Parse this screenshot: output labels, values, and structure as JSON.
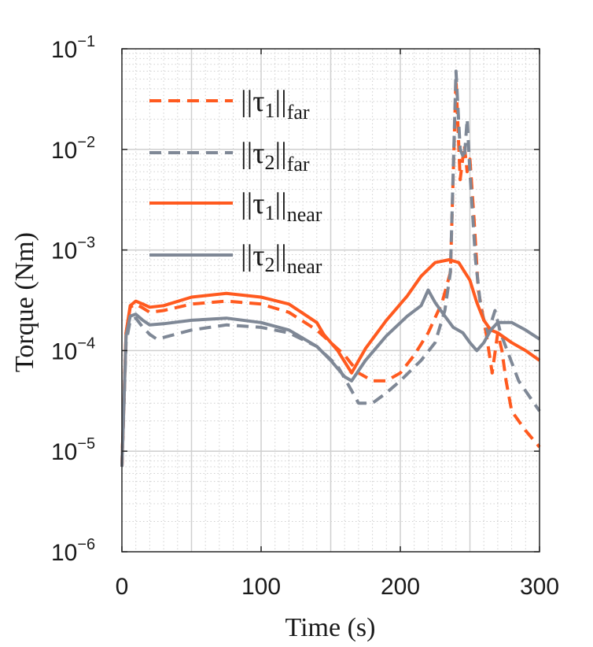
{
  "chart_data": {
    "type": "line",
    "title": "",
    "xlabel": "Time (s)",
    "ylabel": "Torque (Nm)",
    "xlim": [
      0,
      300
    ],
    "ylim_log10": [
      -6,
      -1
    ],
    "yscale": "log",
    "grid": true,
    "minor_grid": true,
    "legend_position": "top-left",
    "x_ticks": [
      {
        "value": 0,
        "label": "0"
      },
      {
        "value": 100,
        "label": "100"
      },
      {
        "value": 200,
        "label": "200"
      },
      {
        "value": 300,
        "label": "300"
      }
    ],
    "y_ticks": [
      {
        "exponent": -6,
        "base": "10",
        "sup": "−6"
      },
      {
        "exponent": -5,
        "base": "10",
        "sup": "−5"
      },
      {
        "exponent": -4,
        "base": "10",
        "sup": "−4"
      },
      {
        "exponent": -3,
        "base": "10",
        "sup": "−3"
      },
      {
        "exponent": -2,
        "base": "10",
        "sup": "−2"
      },
      {
        "exponent": -1,
        "base": "10",
        "sup": "−1"
      }
    ],
    "series": [
      {
        "key": "tau1_far",
        "legend": {
          "pre": "||τ",
          "idx": "1",
          "mid": "||",
          "sub": "far"
        },
        "color": "#FF5A1F",
        "style": "dashed",
        "points": [
          [
            0,
            7e-06
          ],
          [
            3,
            0.00015
          ],
          [
            6,
            0.00027
          ],
          [
            10,
            0.00029
          ],
          [
            15,
            0.000265
          ],
          [
            20,
            0.00024
          ],
          [
            30,
            0.00025
          ],
          [
            50,
            0.00029
          ],
          [
            75,
            0.00031
          ],
          [
            100,
            0.00029
          ],
          [
            120,
            0.00024
          ],
          [
            140,
            0.00016
          ],
          [
            150,
            0.00012
          ],
          [
            160,
            9e-05
          ],
          [
            170,
            6e-05
          ],
          [
            180,
            5e-05
          ],
          [
            190,
            5e-05
          ],
          [
            200,
            6e-05
          ],
          [
            210,
            9e-05
          ],
          [
            220,
            0.00015
          ],
          [
            230,
            0.0003
          ],
          [
            236,
            0.0006
          ],
          [
            240,
            0.05
          ],
          [
            243,
            0.005
          ],
          [
            246,
            0.011
          ],
          [
            248,
            0.006
          ],
          [
            250,
            0.008
          ],
          [
            253,
            0.002
          ],
          [
            256,
            0.0004
          ],
          [
            262,
            0.00014
          ],
          [
            266,
            6e-05
          ],
          [
            270,
            0.00015
          ],
          [
            273,
            0.0001
          ],
          [
            276,
            5e-05
          ],
          [
            280,
            2.5e-05
          ],
          [
            290,
            1.6e-05
          ],
          [
            300,
            1.1e-05
          ]
        ]
      },
      {
        "key": "tau2_far",
        "legend": {
          "pre": "||τ",
          "idx": "2",
          "mid": "||",
          "sub": "far"
        },
        "color": "#7F8896",
        "style": "dashed",
        "points": [
          [
            0,
            7e-06
          ],
          [
            3,
            0.00012
          ],
          [
            6,
            0.0002
          ],
          [
            10,
            0.00021
          ],
          [
            15,
            0.00017
          ],
          [
            20,
            0.000145
          ],
          [
            25,
            0.00013
          ],
          [
            30,
            0.000135
          ],
          [
            50,
            0.00016
          ],
          [
            75,
            0.00018
          ],
          [
            100,
            0.00017
          ],
          [
            120,
            0.00015
          ],
          [
            140,
            0.00011
          ],
          [
            155,
            7e-05
          ],
          [
            165,
            4e-05
          ],
          [
            170,
            3e-05
          ],
          [
            180,
            3e-05
          ],
          [
            190,
            3.8e-05
          ],
          [
            200,
            5e-05
          ],
          [
            215,
            8e-05
          ],
          [
            225,
            0.00012
          ],
          [
            232,
            0.00025
          ],
          [
            236,
            0.0006
          ],
          [
            240,
            0.06
          ],
          [
            243,
            0.01
          ],
          [
            246,
            0.008
          ],
          [
            248,
            0.02
          ],
          [
            250,
            0.006
          ],
          [
            254,
            0.0008
          ],
          [
            258,
            0.00025
          ],
          [
            263,
            0.00015
          ],
          [
            268,
            0.00025
          ],
          [
            272,
            0.00015
          ],
          [
            278,
            9e-05
          ],
          [
            285,
            5e-05
          ],
          [
            300,
            2.5e-05
          ]
        ]
      },
      {
        "key": "tau1_near",
        "legend": {
          "pre": "||τ",
          "idx": "1",
          "mid": "||",
          "sub": "near"
        },
        "color": "#FF5A1F",
        "style": "solid",
        "points": [
          [
            0,
            7e-06
          ],
          [
            3,
            0.00015
          ],
          [
            6,
            0.00028
          ],
          [
            10,
            0.00031
          ],
          [
            15,
            0.00029
          ],
          [
            20,
            0.00027
          ],
          [
            30,
            0.00028
          ],
          [
            50,
            0.00034
          ],
          [
            75,
            0.00037
          ],
          [
            100,
            0.00034
          ],
          [
            120,
            0.00029
          ],
          [
            140,
            0.00019
          ],
          [
            145,
            0.000145
          ],
          [
            155,
            0.0001
          ],
          [
            165,
            6e-05
          ],
          [
            175,
            0.000105
          ],
          [
            190,
            0.0002
          ],
          [
            205,
            0.00035
          ],
          [
            215,
            0.00055
          ],
          [
            225,
            0.00075
          ],
          [
            235,
            0.0008
          ],
          [
            242,
            0.00075
          ],
          [
            250,
            0.0005
          ],
          [
            255,
            0.0003
          ],
          [
            260,
            0.0002
          ],
          [
            265,
            0.00016
          ],
          [
            270,
            0.00015
          ],
          [
            280,
            0.00012
          ],
          [
            290,
            0.0001
          ],
          [
            300,
            8e-05
          ]
        ]
      },
      {
        "key": "tau2_near",
        "legend": {
          "pre": "||τ",
          "idx": "2",
          "mid": "||",
          "sub": "near"
        },
        "color": "#7F8896",
        "style": "solid",
        "points": [
          [
            0,
            7e-06
          ],
          [
            3,
            0.00014
          ],
          [
            6,
            0.00022
          ],
          [
            10,
            0.00023
          ],
          [
            15,
            0.0002
          ],
          [
            20,
            0.00018
          ],
          [
            30,
            0.000185
          ],
          [
            50,
            0.0002
          ],
          [
            75,
            0.00021
          ],
          [
            100,
            0.00019
          ],
          [
            120,
            0.00016
          ],
          [
            140,
            0.00011
          ],
          [
            150,
            8e-05
          ],
          [
            160,
            5.5e-05
          ],
          [
            165,
            5e-05
          ],
          [
            175,
            8e-05
          ],
          [
            190,
            0.00014
          ],
          [
            205,
            0.00022
          ],
          [
            215,
            0.00028
          ],
          [
            220,
            0.0004
          ],
          [
            225,
            0.0003
          ],
          [
            232,
            0.00022
          ],
          [
            238,
            0.00017
          ],
          [
            245,
            0.00015
          ],
          [
            250,
            0.00012
          ],
          [
            255,
            0.0001
          ],
          [
            260,
            0.00012
          ],
          [
            265,
            0.00016
          ],
          [
            270,
            0.00019
          ],
          [
            280,
            0.00019
          ],
          [
            290,
            0.00016
          ],
          [
            300,
            0.00013
          ]
        ]
      }
    ]
  }
}
